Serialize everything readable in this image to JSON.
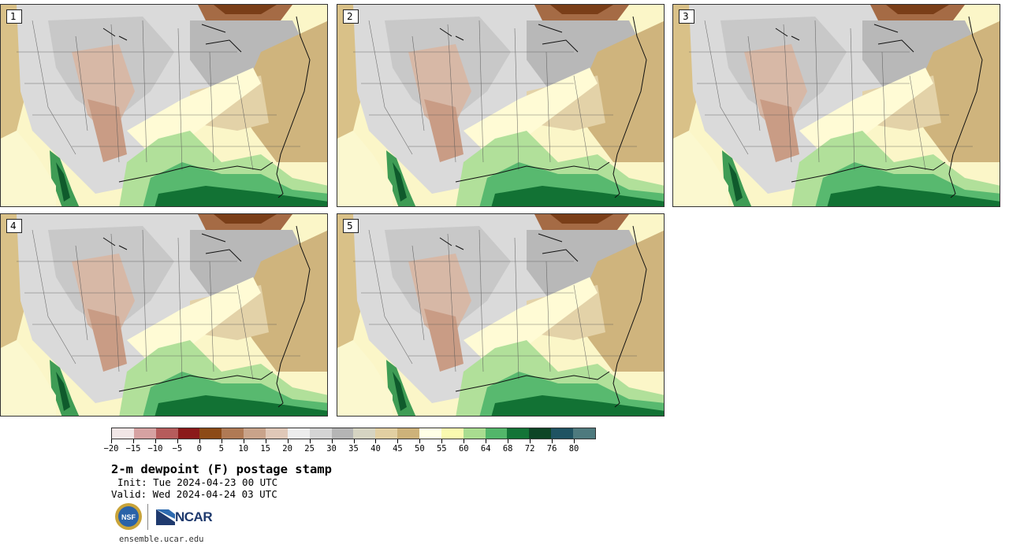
{
  "panels": [
    {
      "label": "1"
    },
    {
      "label": "2"
    },
    {
      "label": "3"
    },
    {
      "label": "4"
    },
    {
      "label": "5"
    }
  ],
  "colorbar": {
    "colors": [
      "#f1e6e6",
      "#d6a2a2",
      "#b65c5c",
      "#8b1a1a",
      "#8c4a17",
      "#b07a55",
      "#c9a38a",
      "#e0c8b8",
      "#ededed",
      "#d5d5d5",
      "#b5b5b5",
      "#d6d4c2",
      "#e2cfa2",
      "#cdb27a",
      "#ffffe6",
      "#fafab0",
      "#a9dd90",
      "#52b66a",
      "#137437",
      "#0d4526",
      "#1f5362",
      "#4e7a7e"
    ],
    "tick_labels": [
      "−20",
      "−15",
      "−10",
      "−5",
      "0",
      "5",
      "10",
      "15",
      "20",
      "25",
      "30",
      "35",
      "40",
      "45",
      "50",
      "55",
      "60",
      "64",
      "68",
      "72",
      "76",
      "80"
    ]
  },
  "title": "2-m dewpoint (F) postage stamp",
  "init": "Init: Tue 2024-04-23 00 UTC",
  "valid": "Valid: Wed 2024-04-24 03 UTC",
  "logos": {
    "nsf": "NSF",
    "ncar": "NCAR"
  },
  "site": "ensemble.ucar.edu"
}
